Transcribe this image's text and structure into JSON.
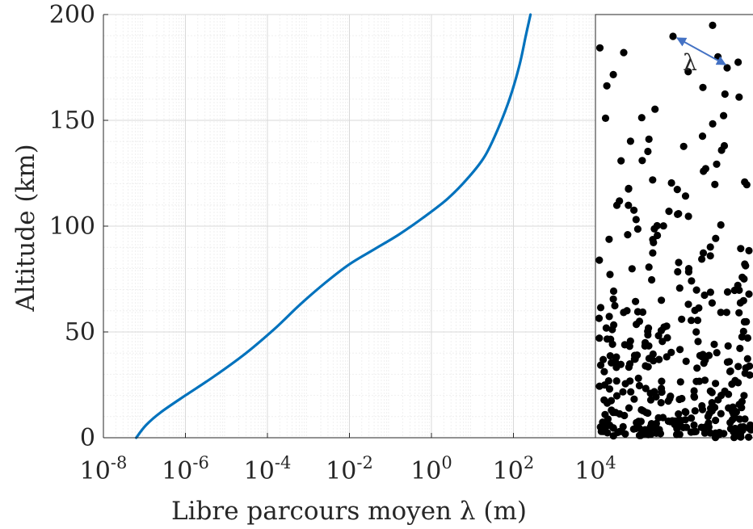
{
  "chart_data": [
    {
      "type": "line",
      "xlabel": "Libre parcours moyen λ (m)",
      "ylabel": "Altitude (km)",
      "xscale": "log",
      "xlim": [
        1e-08,
        10000.0
      ],
      "ylim": [
        0,
        200
      ],
      "grid": true,
      "x_ticks": [
        {
          "value": 1e-08,
          "base": "10",
          "exp": "-8"
        },
        {
          "value": 1e-06,
          "base": "10",
          "exp": "-6"
        },
        {
          "value": 0.0001,
          "base": "10",
          "exp": "-4"
        },
        {
          "value": 0.01,
          "base": "10",
          "exp": "-2"
        },
        {
          "value": 1,
          "base": "10",
          "exp": "0"
        },
        {
          "value": 100,
          "base": "10",
          "exp": "2"
        },
        {
          "value": 10000,
          "base": "10",
          "exp": "4"
        }
      ],
      "y_ticks": [
        {
          "value": 0,
          "label": "0"
        },
        {
          "value": 50,
          "label": "50"
        },
        {
          "value": 100,
          "label": "100"
        },
        {
          "value": 150,
          "label": "150"
        },
        {
          "value": 200,
          "label": "200"
        }
      ],
      "series": [
        {
          "color": "#0072bd",
          "points": [
            {
              "x": 6.3e-08,
              "y": 0
            },
            {
              "x": 1.1e-07,
              "y": 6
            },
            {
              "x": 2.5e-07,
              "y": 12
            },
            {
              "x": 1e-06,
              "y": 20
            },
            {
              "x": 5e-06,
              "y": 29
            },
            {
              "x": 3e-05,
              "y": 40
            },
            {
              "x": 0.00016,
              "y": 52
            },
            {
              "x": 0.00063,
              "y": 63
            },
            {
              "x": 0.0025,
              "y": 73
            },
            {
              "x": 0.01,
              "y": 82
            },
            {
              "x": 0.04,
              "y": 89
            },
            {
              "x": 0.16,
              "y": 96
            },
            {
              "x": 0.63,
              "y": 104
            },
            {
              "x": 2.5,
              "y": 113
            },
            {
              "x": 8.0,
              "y": 123
            },
            {
              "x": 20,
              "y": 133
            },
            {
              "x": 40,
              "y": 145
            },
            {
              "x": 80,
              "y": 160
            },
            {
              "x": 140,
              "y": 176
            },
            {
              "x": 200,
              "y": 190
            },
            {
              "x": 260,
              "y": 200
            }
          ]
        }
      ]
    },
    {
      "type": "scatter",
      "annotation": "λ",
      "point_color": "#000000",
      "arrow_color": "#4472c4"
    }
  ]
}
